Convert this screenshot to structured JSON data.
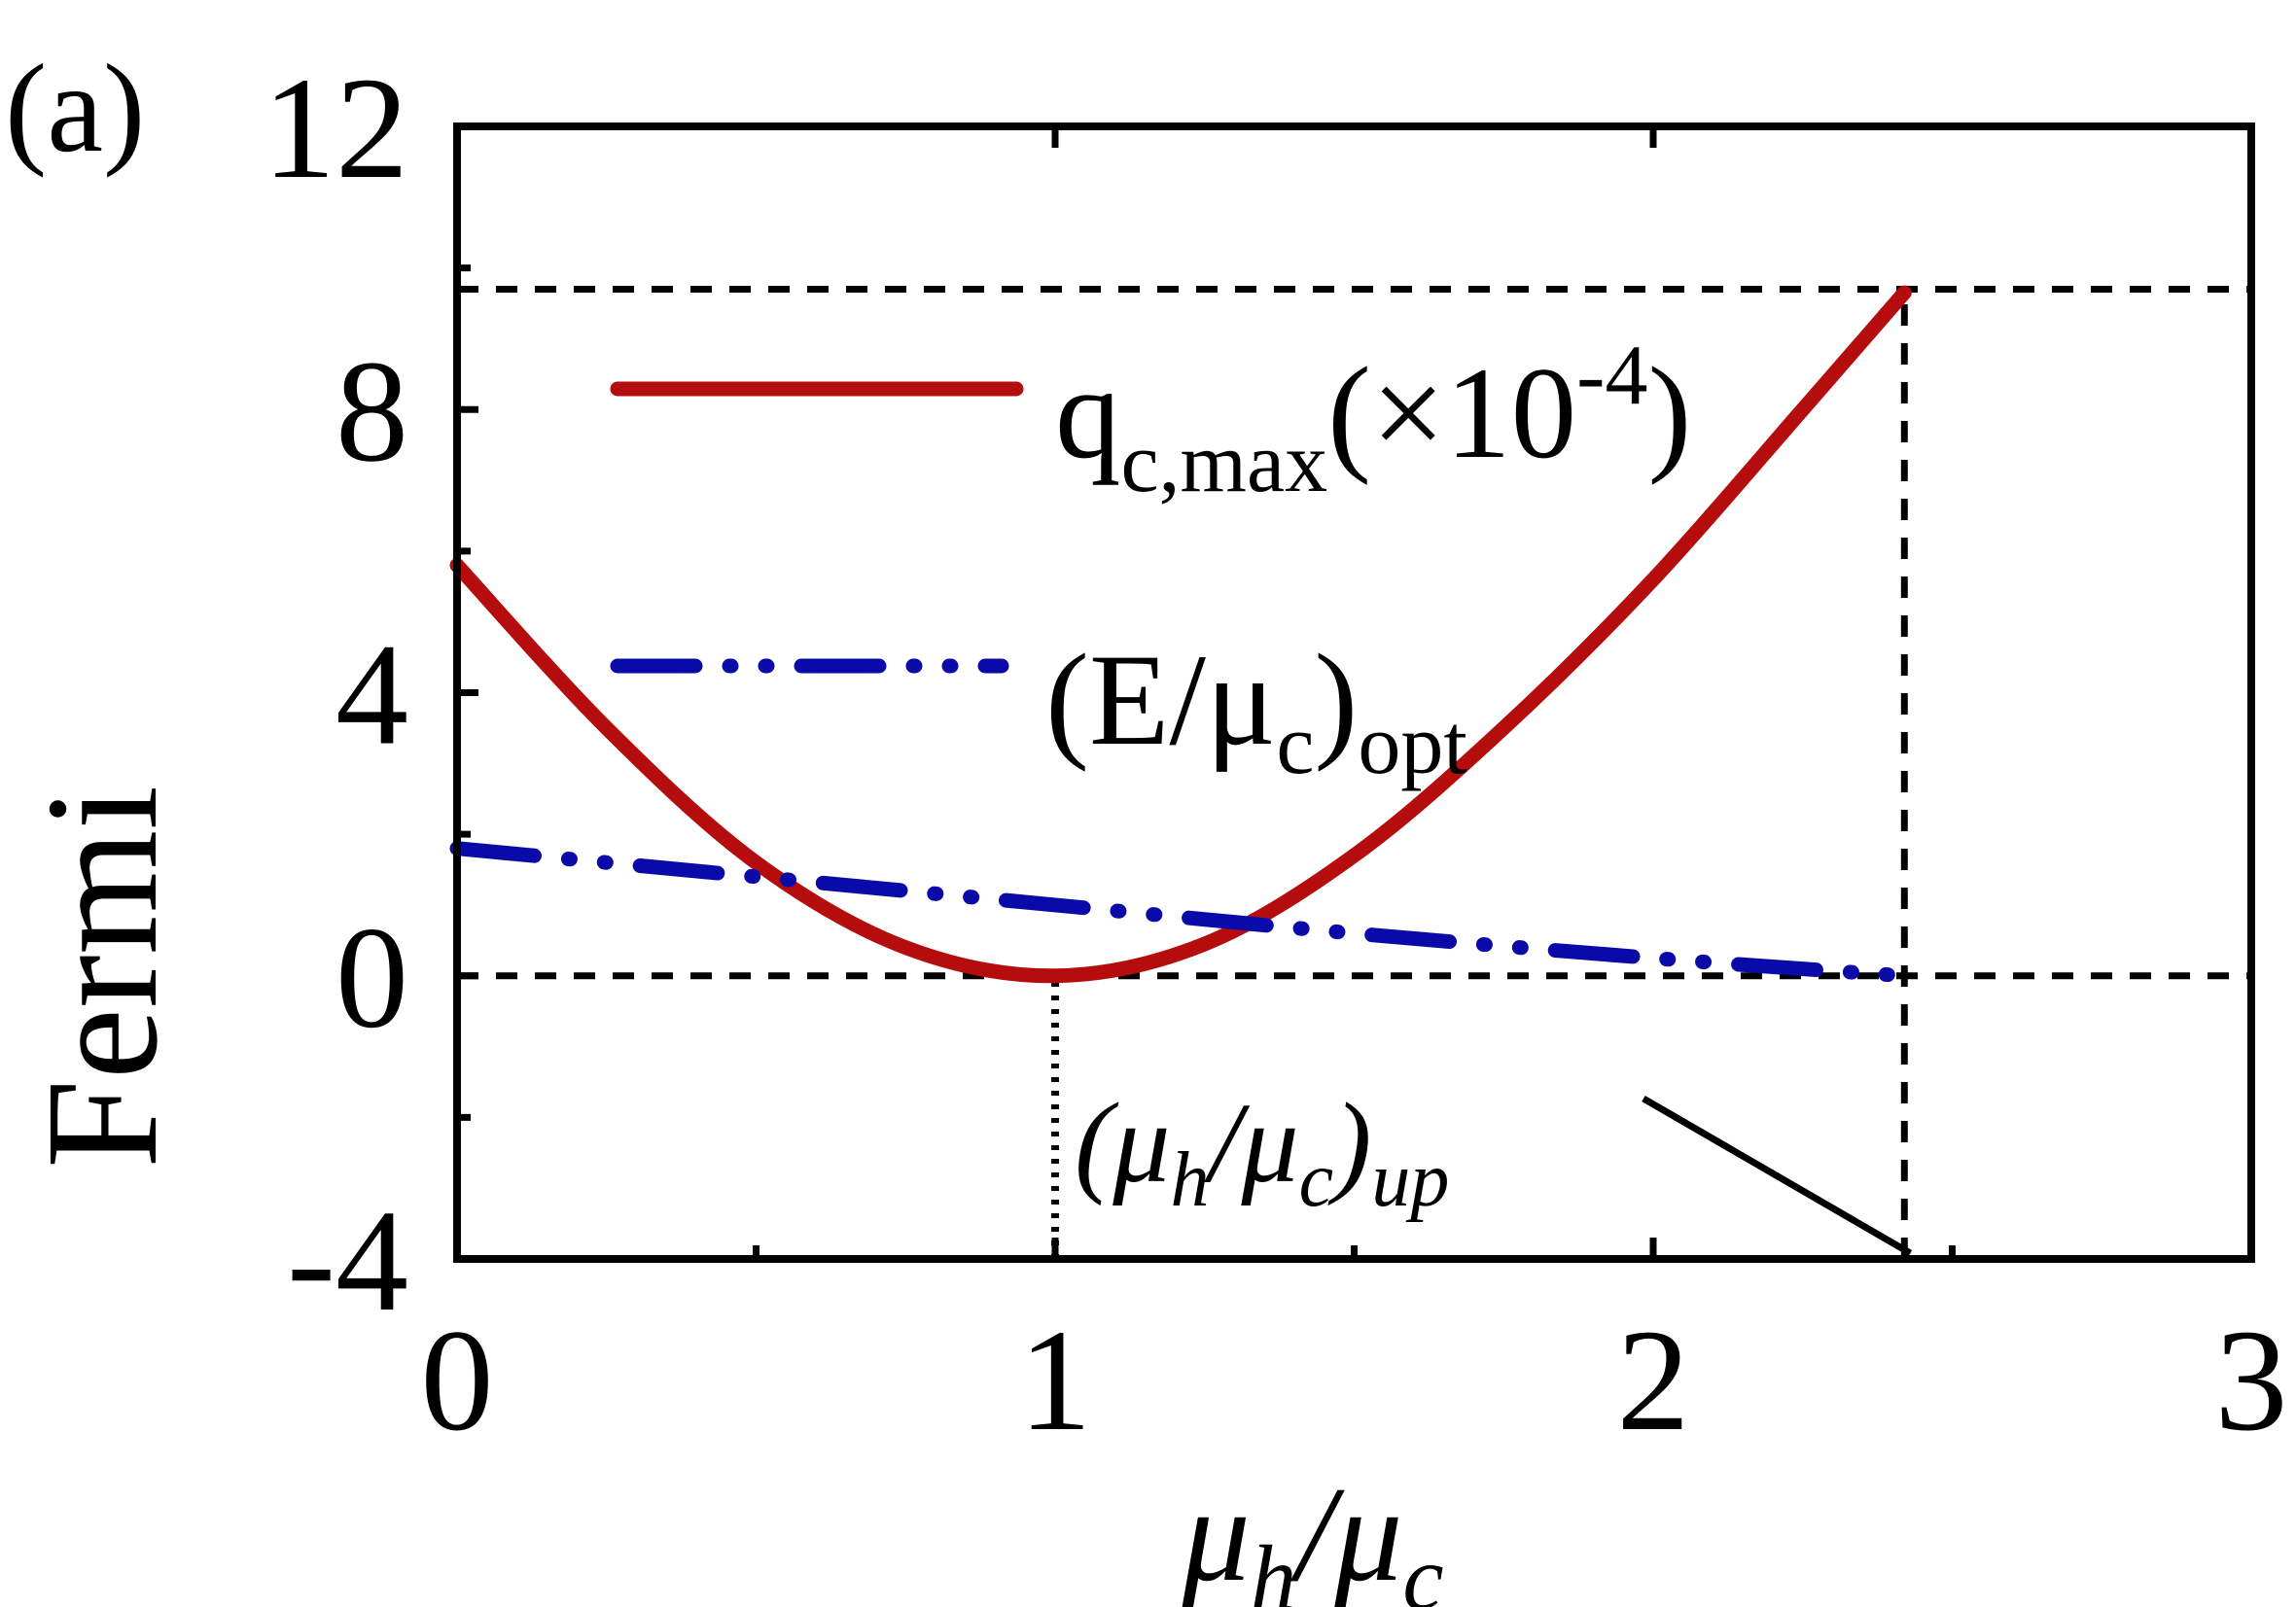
{
  "panel_label": "(a)",
  "colors": {
    "qc_series": "#b50d0d",
    "e_series": "#0a0aa8",
    "frame": "#000000",
    "guides": "#000000"
  },
  "chart_data": {
    "type": "line",
    "xlabel": {
      "base": "μ",
      "sub1": "h",
      "slash": "/",
      "base2": "μ",
      "sub2": "c"
    },
    "ylabel": "Fermi",
    "xlim": [
      0,
      3
    ],
    "ylim": [
      -4,
      12
    ],
    "x_ticks": [
      0,
      1,
      2,
      3
    ],
    "y_ticks": [
      -4,
      0,
      4,
      8,
      12
    ],
    "x_tick_labels": [
      "0",
      "1",
      "2",
      "3"
    ],
    "y_tick_labels": [
      "-4",
      "0",
      "4",
      "8",
      "12"
    ],
    "grid": false,
    "legend_position": "upper-left",
    "series": [
      {
        "key": "qc",
        "legend": {
          "main": "q",
          "sub": "c,max",
          "suffix": "(×10",
          "sup": "-4",
          "close": ")"
        },
        "style": "solid",
        "x": [
          0,
          0.25,
          0.5,
          0.75,
          1.0,
          1.25,
          1.5,
          1.75,
          2.0,
          2.25,
          2.42
        ],
        "y": [
          5.8,
          3.5,
          1.6,
          0.4,
          0.0,
          0.45,
          1.7,
          3.5,
          5.6,
          8.0,
          9.65
        ]
      },
      {
        "key": "e",
        "legend": {
          "main": "(E/μ",
          "sub": "c",
          "close": ")",
          "sub2": "opt"
        },
        "style": "dash-dot-dot",
        "x": [
          0,
          0.5,
          1.0,
          1.5,
          2.0,
          2.42
        ],
        "y": [
          1.8,
          1.4,
          1.0,
          0.6,
          0.25,
          0.0
        ]
      }
    ],
    "reference_lines": [
      {
        "axis": "y",
        "value": 9.7,
        "style": "dashed"
      },
      {
        "axis": "y",
        "value": 0,
        "style": "dashed"
      },
      {
        "axis": "x",
        "value": 2.42,
        "style": "dashed"
      },
      {
        "axis": "x",
        "value": 1,
        "from": -4,
        "to": 0,
        "style": "dotted"
      }
    ],
    "annotations": [
      {
        "text": {
          "open": "(",
          "base": "μ",
          "sub1": "h",
          "slash": "/",
          "base2": "μ",
          "sub2": "c",
          "close": ")",
          "sub3": "up"
        },
        "arrow_to": [
          2.42,
          -4
        ]
      }
    ]
  }
}
